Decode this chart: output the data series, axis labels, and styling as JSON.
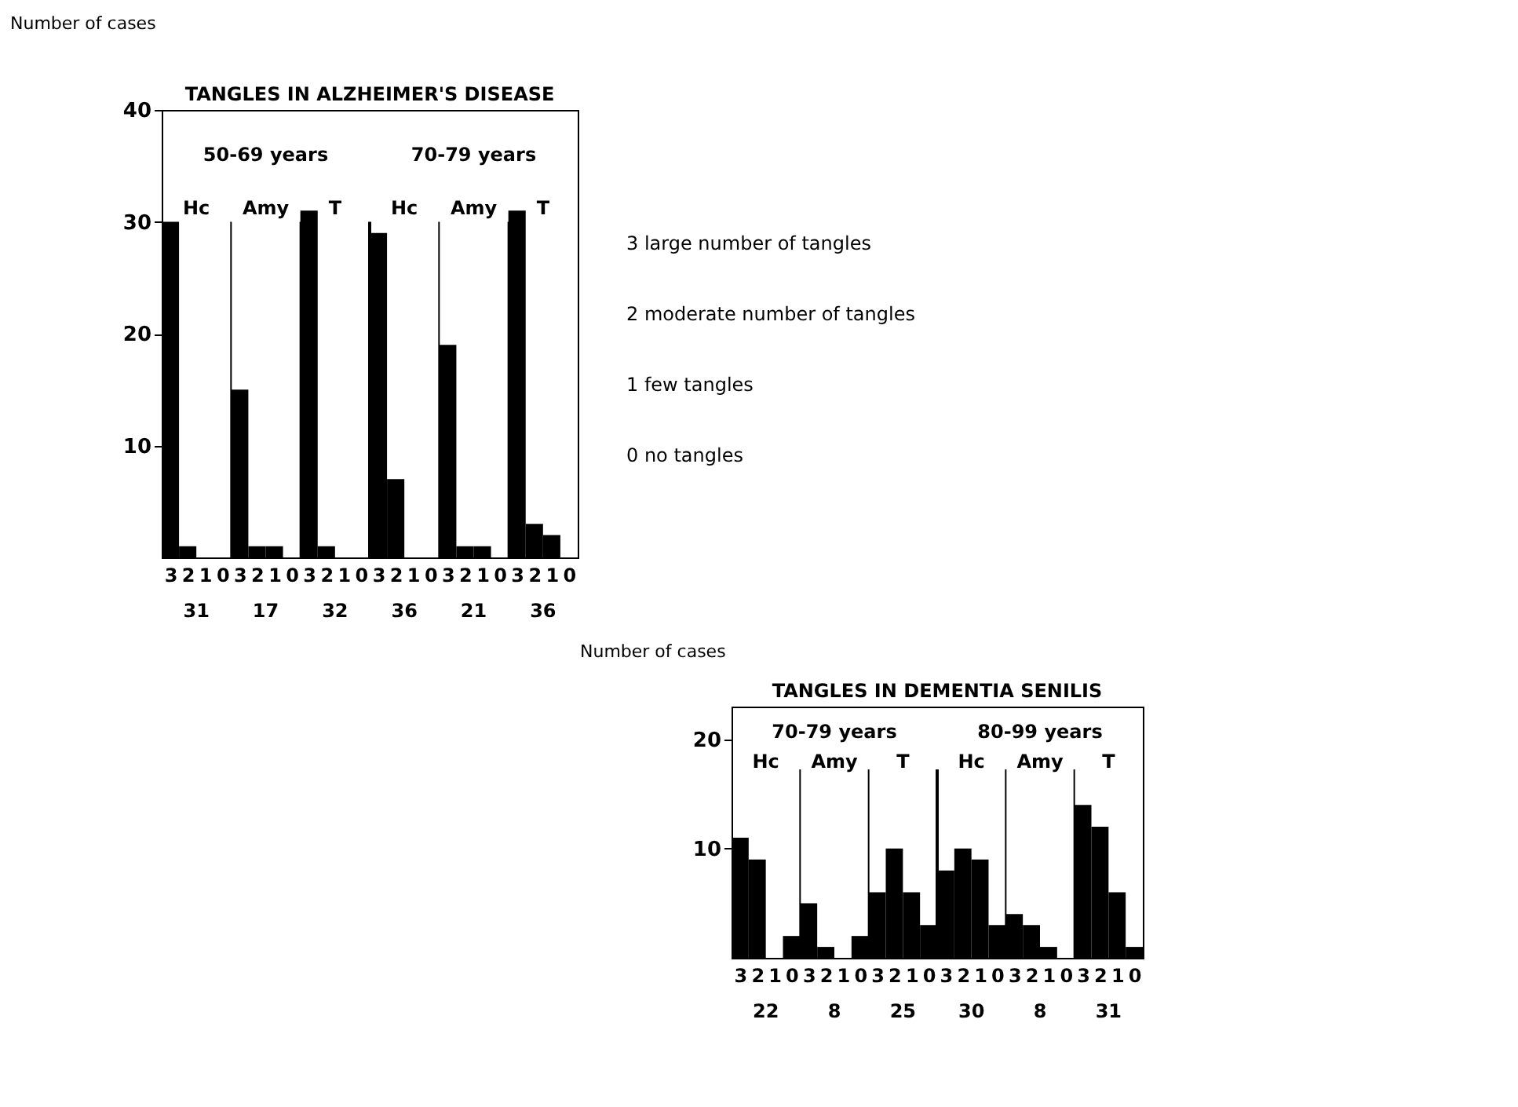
{
  "chart_data": [
    {
      "type": "bar",
      "title": "TANGLES IN ALZHEIMER'S DISEASE",
      "ylabel": "Number of cases",
      "categories": [
        "3",
        "2",
        "1",
        "0",
        "3",
        "2",
        "1",
        "0",
        "3",
        "2",
        "1",
        "0",
        "3",
        "2",
        "1",
        "0",
        "3",
        "2",
        "1",
        "0",
        "3",
        "2",
        "1",
        "0"
      ],
      "values": [
        30,
        1,
        0,
        0,
        15,
        1,
        1,
        0,
        31,
        1,
        0,
        0,
        29,
        7,
        0,
        0,
        19,
        1,
        1,
        0,
        31,
        3,
        2,
        0
      ],
      "color": "#000000",
      "ylim": [
        0,
        40
      ],
      "yticks": [
        10,
        20,
        30,
        40
      ],
      "grid": false,
      "annotations": [
        "50-69 years",
        "70-79 years",
        "Hc",
        "Amy",
        "T",
        "Hc",
        "Amy",
        "T",
        "31",
        "17",
        "32",
        "36",
        "21",
        "36"
      ]
    },
    {
      "type": "other",
      "annotations": [
        "3  large number of tangles",
        "2  moderate number of tangles",
        "1  few tangles",
        "0  no tangles"
      ]
    },
    {
      "type": "bar",
      "title": "TANGLES IN DEMENTIA SENILIS",
      "ylabel": "Number of cases",
      "categories": [
        "3",
        "2",
        "1",
        "0",
        "3",
        "2",
        "1",
        "0",
        "3",
        "2",
        "1",
        "0",
        "3",
        "2",
        "1",
        "0",
        "3",
        "2",
        "1",
        "0",
        "3",
        "2",
        "1",
        "0"
      ],
      "values": [
        11,
        9,
        0,
        2,
        5,
        1,
        0,
        2,
        6,
        10,
        6,
        3,
        8,
        10,
        9,
        3,
        4,
        3,
        1,
        0,
        14,
        12,
        6,
        1
      ],
      "color": "#000000",
      "ylim": [
        0,
        23
      ],
      "yticks": [
        10,
        20
      ],
      "grid": false,
      "annotations": [
        "70-79 years",
        "80-99 years",
        "Hc",
        "Amy",
        "T",
        "Hc",
        "Amy",
        "T",
        "22",
        "8",
        "25",
        "30",
        "8",
        "31"
      ]
    }
  ]
}
